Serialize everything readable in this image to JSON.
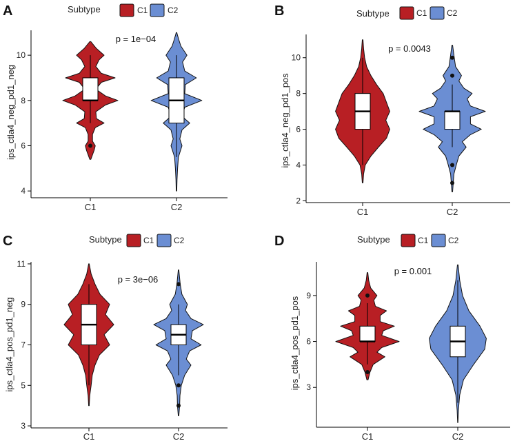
{
  "figure": {
    "legend_title": "Subtype"
  },
  "colors": {
    "C1": "#b81f24",
    "C2": "#6b8ed3",
    "axis": "#000000",
    "text": "#222222"
  },
  "chart_data": [
    {
      "panel_label": "A",
      "type": "violin",
      "ylabel": "ips_ctla4_neg_pd1_neg",
      "categories": [
        "C1",
        "C2"
      ],
      "legend_entries": [
        "C1",
        "C2"
      ],
      "annotation": "p = 1e−04",
      "ylim": [
        3.7,
        11.1
      ],
      "yticks": [
        4,
        6,
        8,
        10
      ],
      "series": [
        {
          "name": "C1",
          "range": [
            5.4,
            10.6
          ],
          "density": [
            [
              5.4,
              0.02
            ],
            [
              5.6,
              0.08
            ],
            [
              5.8,
              0.14
            ],
            [
              6.0,
              0.18
            ],
            [
              6.2,
              0.08
            ],
            [
              6.5,
              0.08
            ],
            [
              6.8,
              0.18
            ],
            [
              7.0,
              0.5
            ],
            [
              7.2,
              0.22
            ],
            [
              7.5,
              0.2
            ],
            [
              7.8,
              0.55
            ],
            [
              8.0,
              1.0
            ],
            [
              8.2,
              0.55
            ],
            [
              8.5,
              0.2
            ],
            [
              8.8,
              0.4
            ],
            [
              9.0,
              0.9
            ],
            [
              9.2,
              0.4
            ],
            [
              9.5,
              0.2
            ],
            [
              9.8,
              0.32
            ],
            [
              10.0,
              0.5
            ],
            [
              10.3,
              0.22
            ],
            [
              10.6,
              0.02
            ]
          ],
          "box": {
            "q1": 8.0,
            "median": 8.0,
            "q3": 9.0,
            "whisker_low": 7.0,
            "whisker_high": 10.0
          },
          "outliers": [
            6.0
          ]
        },
        {
          "name": "C2",
          "range": [
            4.0,
            11.0
          ],
          "density": [
            [
              4.0,
              0.01
            ],
            [
              4.5,
              0.02
            ],
            [
              5.0,
              0.04
            ],
            [
              5.5,
              0.07
            ],
            [
              6.0,
              0.2
            ],
            [
              6.3,
              0.12
            ],
            [
              6.7,
              0.2
            ],
            [
              7.0,
              0.48
            ],
            [
              7.3,
              0.2
            ],
            [
              7.7,
              0.3
            ],
            [
              8.0,
              0.92
            ],
            [
              8.3,
              0.3
            ],
            [
              8.7,
              0.32
            ],
            [
              9.0,
              0.72
            ],
            [
              9.3,
              0.3
            ],
            [
              9.7,
              0.22
            ],
            [
              10.0,
              0.38
            ],
            [
              10.4,
              0.16
            ],
            [
              10.7,
              0.08
            ],
            [
              11.0,
              0.01
            ]
          ],
          "box": {
            "q1": 7.0,
            "median": 8.0,
            "q3": 9.0,
            "whisker_low": 5.5,
            "whisker_high": 10.0
          },
          "outliers": []
        }
      ]
    },
    {
      "panel_label": "B",
      "type": "violin",
      "ylabel": "ips_ctla4_neg_pd1_pos",
      "categories": [
        "C1",
        "C2"
      ],
      "legend_entries": [
        "C1",
        "C2"
      ],
      "annotation": "p = 0.0043",
      "ylim": [
        1.9,
        11.3
      ],
      "yticks": [
        2,
        4,
        6,
        8,
        10
      ],
      "series": [
        {
          "name": "C1",
          "range": [
            3.0,
            11.0
          ],
          "density": [
            [
              3.0,
              0.01
            ],
            [
              3.5,
              0.03
            ],
            [
              4.0,
              0.08
            ],
            [
              4.5,
              0.25
            ],
            [
              5.0,
              0.48
            ],
            [
              5.5,
              0.72
            ],
            [
              6.0,
              0.82
            ],
            [
              6.5,
              0.7
            ],
            [
              7.0,
              0.82
            ],
            [
              7.5,
              0.72
            ],
            [
              8.0,
              0.62
            ],
            [
              8.5,
              0.42
            ],
            [
              9.0,
              0.25
            ],
            [
              9.5,
              0.12
            ],
            [
              10.0,
              0.06
            ],
            [
              10.5,
              0.03
            ],
            [
              11.0,
              0.01
            ]
          ],
          "box": {
            "q1": 6.0,
            "median": 7.0,
            "q3": 8.0,
            "whisker_low": 4.0,
            "whisker_high": 10.0
          },
          "outliers": []
        },
        {
          "name": "C2",
          "range": [
            2.5,
            10.7
          ],
          "density": [
            [
              2.5,
              0.01
            ],
            [
              3.0,
              0.03
            ],
            [
              3.5,
              0.05
            ],
            [
              4.0,
              0.12
            ],
            [
              4.5,
              0.2
            ],
            [
              5.0,
              0.42
            ],
            [
              5.3,
              0.3
            ],
            [
              5.7,
              0.55
            ],
            [
              6.0,
              0.88
            ],
            [
              6.3,
              0.55
            ],
            [
              6.7,
              0.55
            ],
            [
              7.0,
              1.0
            ],
            [
              7.3,
              0.55
            ],
            [
              7.7,
              0.45
            ],
            [
              8.0,
              0.6
            ],
            [
              8.3,
              0.35
            ],
            [
              8.7,
              0.2
            ],
            [
              9.0,
              0.28
            ],
            [
              9.5,
              0.1
            ],
            [
              10.0,
              0.06
            ],
            [
              10.7,
              0.01
            ]
          ],
          "box": {
            "q1": 6.0,
            "median": 7.0,
            "q3": 7.0,
            "whisker_low": 5.0,
            "whisker_high": 8.5
          },
          "outliers": [
            3.0,
            4.0,
            9.0,
            10.0
          ]
        }
      ]
    },
    {
      "panel_label": "C",
      "type": "violin",
      "ylabel": "ips_ctla4_pos_pd1_neg",
      "categories": [
        "C1",
        "C2"
      ],
      "legend_entries": [
        "C1",
        "C2"
      ],
      "annotation": "p = 3e−06",
      "ylim": [
        2.9,
        11.1
      ],
      "yticks": [
        3,
        5,
        7,
        9,
        11
      ],
      "series": [
        {
          "name": "C1",
          "range": [
            4.0,
            11.0
          ],
          "density": [
            [
              4.0,
              0.01
            ],
            [
              4.5,
              0.03
            ],
            [
              5.0,
              0.08
            ],
            [
              5.5,
              0.12
            ],
            [
              6.0,
              0.22
            ],
            [
              6.5,
              0.38
            ],
            [
              7.0,
              0.75
            ],
            [
              7.5,
              0.55
            ],
            [
              8.0,
              0.9
            ],
            [
              8.5,
              0.6
            ],
            [
              9.0,
              0.75
            ],
            [
              9.5,
              0.4
            ],
            [
              10.0,
              0.22
            ],
            [
              10.5,
              0.08
            ],
            [
              11.0,
              0.01
            ]
          ],
          "box": {
            "q1": 7.0,
            "median": 8.0,
            "q3": 9.0,
            "whisker_low": 5.0,
            "whisker_high": 10.0
          },
          "outliers": []
        },
        {
          "name": "C2",
          "range": [
            3.5,
            10.7
          ],
          "density": [
            [
              3.5,
              0.01
            ],
            [
              4.0,
              0.04
            ],
            [
              4.5,
              0.05
            ],
            [
              5.0,
              0.1
            ],
            [
              5.5,
              0.22
            ],
            [
              6.0,
              0.45
            ],
            [
              6.3,
              0.28
            ],
            [
              6.7,
              0.4
            ],
            [
              7.0,
              0.82
            ],
            [
              7.3,
              0.45
            ],
            [
              7.7,
              0.5
            ],
            [
              8.0,
              0.9
            ],
            [
              8.3,
              0.45
            ],
            [
              8.7,
              0.25
            ],
            [
              9.0,
              0.32
            ],
            [
              9.5,
              0.12
            ],
            [
              10.0,
              0.06
            ],
            [
              10.7,
              0.01
            ]
          ],
          "box": {
            "q1": 7.0,
            "median": 7.5,
            "q3": 8.0,
            "whisker_low": 5.5,
            "whisker_high": 9.0
          },
          "outliers": [
            4.0,
            5.0,
            10.0
          ]
        }
      ]
    },
    {
      "panel_label": "D",
      "type": "violin",
      "ylabel": "ips_ctla4_pos_pd1_pos",
      "categories": [
        "C1",
        "C2"
      ],
      "legend_entries": [
        "C1",
        "C2"
      ],
      "annotation": "p = 0.001",
      "ylim": [
        0.4,
        11.2
      ],
      "yticks": [
        3,
        6,
        9
      ],
      "series": [
        {
          "name": "C1",
          "range": [
            3.5,
            10.5
          ],
          "density": [
            [
              3.5,
              0.02
            ],
            [
              4.0,
              0.08
            ],
            [
              4.5,
              0.18
            ],
            [
              5.0,
              0.55
            ],
            [
              5.3,
              0.3
            ],
            [
              5.6,
              0.45
            ],
            [
              6.0,
              1.0
            ],
            [
              6.4,
              0.45
            ],
            [
              6.7,
              0.5
            ],
            [
              7.0,
              0.85
            ],
            [
              7.3,
              0.4
            ],
            [
              7.7,
              0.4
            ],
            [
              8.0,
              0.6
            ],
            [
              8.3,
              0.25
            ],
            [
              8.7,
              0.2
            ],
            [
              9.0,
              0.3
            ],
            [
              9.5,
              0.1
            ],
            [
              10.0,
              0.04
            ],
            [
              10.5,
              0.01
            ]
          ],
          "box": {
            "q1": 6.0,
            "median": 6.0,
            "q3": 7.0,
            "whisker_low": 4.5,
            "whisker_high": 8.5
          },
          "outliers": [
            4.0,
            9.0
          ]
        },
        {
          "name": "C2",
          "range": [
            0.7,
            11.0
          ],
          "density": [
            [
              0.7,
              0.005
            ],
            [
              1.5,
              0.02
            ],
            [
              2.5,
              0.06
            ],
            [
              3.5,
              0.18
            ],
            [
              4.5,
              0.5
            ],
            [
              5.5,
              0.85
            ],
            [
              6.2,
              0.9
            ],
            [
              7.0,
              0.7
            ],
            [
              8.0,
              0.35
            ],
            [
              9.0,
              0.15
            ],
            [
              10.0,
              0.06
            ],
            [
              11.0,
              0.01
            ]
          ],
          "box": {
            "q1": 5.0,
            "median": 6.0,
            "q3": 7.0,
            "whisker_low": 2.0,
            "whisker_high": 10.0
          },
          "outliers": []
        }
      ]
    }
  ]
}
